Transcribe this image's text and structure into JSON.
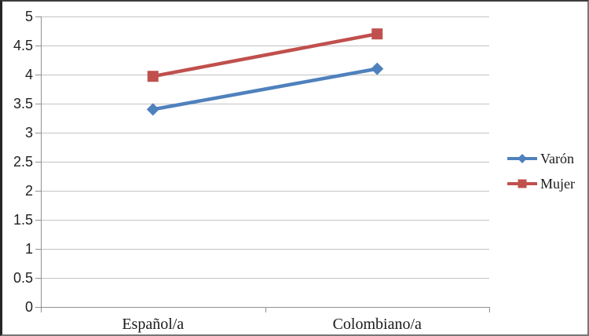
{
  "frame": {
    "background": "#ffffff",
    "border_color": "#767676",
    "border_left_color": "#262626",
    "border_top_color": "#3d3d3d"
  },
  "chart_data": {
    "type": "line",
    "title": "",
    "xlabel": "",
    "ylabel": "",
    "categories": [
      "Español/a",
      "Colombiano/a"
    ],
    "series": [
      {
        "name": "Varón",
        "values": [
          3.4,
          4.1
        ],
        "color": "#4F81BD",
        "marker": "diamond"
      },
      {
        "name": "Mujer",
        "values": [
          3.97,
          4.7
        ],
        "color": "#C0504D",
        "marker": "square"
      }
    ],
    "ylim": [
      0,
      5
    ],
    "ytick_step": 0.5,
    "ytick_labels": [
      "0",
      "0.5",
      "1",
      "1.5",
      "2",
      "2.5",
      "3",
      "3.5",
      "4",
      "4.5",
      "5"
    ],
    "grid": true,
    "legend_position": "right",
    "colors": {
      "gridline": "#c3c3c3",
      "axis": "#919191",
      "tick_text": "#1f1f1f",
      "category_text": "#1a1a1a",
      "legend_text": "#1a1a1a"
    }
  }
}
